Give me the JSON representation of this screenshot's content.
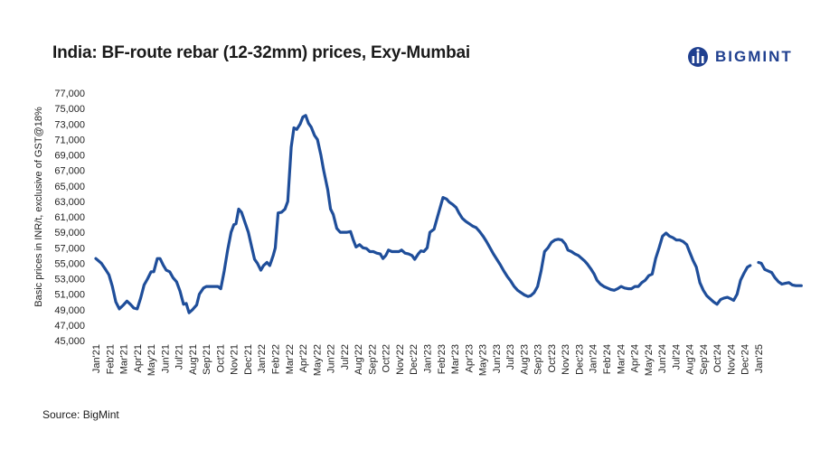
{
  "title": "India: BF-route rebar (12-32mm) prices, Exy-Mumbai",
  "source": "Source: BigMint",
  "brand": {
    "name": "BIGMINT",
    "color": "#1f3f8f",
    "icon": "bigmint-logo-icon"
  },
  "chart_data": {
    "type": "line",
    "title": "India: BF-route rebar (12-32mm) prices, Exy-Mumbai",
    "xlabel": "",
    "ylabel": "Basic prices in INR/t, exclusive of GST@18%",
    "ylim": [
      45000,
      77000
    ],
    "ytick_labels": [
      "45,000",
      "47,000",
      "49,000",
      "51,000",
      "53,000",
      "55,000",
      "57,000",
      "59,000",
      "61,000",
      "63,000",
      "65,000",
      "67,000",
      "69,000",
      "71,000",
      "73,000",
      "75,000",
      "77,000"
    ],
    "categories": [
      "Jan'21",
      "Feb'21",
      "Mar'21",
      "Apr'21",
      "May'21",
      "Jun'21",
      "Jul'21",
      "Aug'21",
      "Sep'21",
      "Oct'21",
      "Nov'21",
      "Dec'21",
      "Jan'22",
      "Feb'22",
      "Mar'22",
      "Apr'22",
      "May'22",
      "Jun'22",
      "Jul'22",
      "Aug'22",
      "Sep'22",
      "Oct'22",
      "Nov'22",
      "Dec'22",
      "Jan'23",
      "Feb'23",
      "Mar'23",
      "Apr'23",
      "May'23",
      "Jun'23",
      "Jul'23",
      "Aug'23",
      "Sep'23",
      "Oct'23",
      "Nov'23",
      "Dec'23",
      "Jan'24",
      "Feb'24",
      "Mar'24",
      "Apr'24",
      "May'24",
      "Jun'24",
      "Jul'24",
      "Aug'24",
      "Sep'24",
      "Oct'24",
      "Nov'24",
      "Dec'24",
      "Jan'25"
    ],
    "grid": false,
    "legend": "none",
    "line_color": "#1f4e9a",
    "series": [
      {
        "segments": [
          [
            [
              0.0,
              55600
            ],
            [
              0.4,
              55000
            ],
            [
              0.7,
              54200
            ],
            [
              0.95,
              53500
            ],
            [
              1.2,
              52000
            ],
            [
              1.45,
              50000
            ],
            [
              1.7,
              49100
            ],
            [
              2.0,
              49600
            ],
            [
              2.25,
              50100
            ],
            [
              2.5,
              49700
            ],
            [
              2.75,
              49200
            ],
            [
              3.0,
              49100
            ],
            [
              3.25,
              50500
            ],
            [
              3.5,
              52200
            ],
            [
              3.75,
              53000
            ],
            [
              4.0,
              53900
            ],
            [
              4.2,
              53900
            ],
            [
              4.45,
              55600
            ],
            [
              4.65,
              55600
            ],
            [
              4.9,
              54700
            ],
            [
              5.1,
              54100
            ],
            [
              5.35,
              53900
            ],
            [
              5.6,
              53100
            ],
            [
              5.85,
              52600
            ],
            [
              6.1,
              51400
            ],
            [
              6.35,
              49700
            ],
            [
              6.55,
              49800
            ],
            [
              6.75,
              48600
            ],
            [
              7.0,
              49000
            ],
            [
              7.3,
              49600
            ],
            [
              7.5,
              51000
            ],
            [
              7.8,
              51800
            ],
            [
              8.0,
              52000
            ],
            [
              8.3,
              52000
            ],
            [
              8.6,
              52000
            ],
            [
              8.85,
              52000
            ],
            [
              9.05,
              51700
            ],
            [
              9.3,
              54000
            ],
            [
              9.55,
              56700
            ],
            [
              9.8,
              59000
            ],
            [
              10.0,
              60000
            ],
            [
              10.15,
              60100
            ],
            [
              10.35,
              62000
            ],
            [
              10.55,
              61600
            ],
            [
              10.8,
              60300
            ],
            [
              11.05,
              59000
            ],
            [
              11.3,
              57000
            ],
            [
              11.5,
              55500
            ],
            [
              11.7,
              55000
            ],
            [
              11.95,
              54100
            ],
            [
              12.15,
              54700
            ],
            [
              12.4,
              55100
            ],
            [
              12.6,
              54700
            ],
            [
              12.85,
              56000
            ],
            [
              13.0,
              57000
            ],
            [
              13.2,
              61500
            ],
            [
              13.45,
              61600
            ],
            [
              13.7,
              62000
            ],
            [
              13.9,
              63000
            ],
            [
              14.15,
              70000
            ],
            [
              14.35,
              72500
            ],
            [
              14.55,
              72300
            ],
            [
              14.8,
              73000
            ],
            [
              15.0,
              73900
            ],
            [
              15.2,
              74100
            ],
            [
              15.4,
              73100
            ],
            [
              15.6,
              72600
            ],
            [
              15.85,
              71500
            ],
            [
              16.05,
              71000
            ],
            [
              16.3,
              69000
            ],
            [
              16.5,
              67000
            ],
            [
              16.8,
              64500
            ],
            [
              17.0,
              62000
            ],
            [
              17.2,
              61300
            ],
            [
              17.45,
              59500
            ],
            [
              17.7,
              59000
            ],
            [
              17.95,
              59000
            ],
            [
              18.2,
              59000
            ],
            [
              18.45,
              59100
            ],
            [
              18.65,
              58000
            ],
            [
              18.85,
              57100
            ],
            [
              19.1,
              57400
            ],
            [
              19.35,
              57000
            ],
            [
              19.6,
              56900
            ],
            [
              19.85,
              56500
            ],
            [
              20.1,
              56500
            ],
            [
              20.35,
              56300
            ],
            [
              20.6,
              56200
            ],
            [
              20.8,
              55600
            ],
            [
              21.0,
              56000
            ],
            [
              21.2,
              56700
            ],
            [
              21.45,
              56500
            ],
            [
              21.7,
              56500
            ],
            [
              21.95,
              56500
            ],
            [
              22.15,
              56700
            ],
            [
              22.4,
              56300
            ],
            [
              22.65,
              56200
            ],
            [
              22.9,
              56000
            ],
            [
              23.1,
              55500
            ],
            [
              23.35,
              56200
            ],
            [
              23.55,
              56600
            ],
            [
              23.75,
              56500
            ],
            [
              24.0,
              57000
            ],
            [
              24.2,
              59000
            ],
            [
              24.5,
              59400
            ],
            [
              24.75,
              61000
            ],
            [
              25.0,
              62600
            ],
            [
              25.15,
              63500
            ],
            [
              25.4,
              63300
            ],
            [
              25.6,
              62900
            ],
            [
              25.85,
              62600
            ],
            [
              26.1,
              62200
            ],
            [
              26.3,
              61500
            ],
            [
              26.55,
              60800
            ],
            [
              26.8,
              60400
            ],
            [
              27.05,
              60100
            ],
            [
              27.3,
              59800
            ],
            [
              27.55,
              59600
            ],
            [
              27.8,
              59100
            ],
            [
              28.05,
              58500
            ],
            [
              28.3,
              57800
            ],
            [
              28.55,
              57000
            ],
            [
              28.8,
              56200
            ],
            [
              29.05,
              55500
            ],
            [
              29.3,
              54800
            ],
            [
              29.55,
              54000
            ],
            [
              29.8,
              53300
            ],
            [
              30.05,
              52700
            ],
            [
              30.3,
              52000
            ],
            [
              30.55,
              51500
            ],
            [
              30.8,
              51200
            ],
            [
              31.05,
              50900
            ],
            [
              31.3,
              50700
            ],
            [
              31.5,
              50800
            ],
            [
              31.75,
              51200
            ],
            [
              32.0,
              52000
            ],
            [
              32.25,
              54000
            ],
            [
              32.5,
              56500
            ],
            [
              32.75,
              57000
            ],
            [
              33.0,
              57700
            ],
            [
              33.25,
              58000
            ],
            [
              33.5,
              58100
            ],
            [
              33.75,
              58000
            ],
            [
              34.0,
              57500
            ],
            [
              34.2,
              56700
            ],
            [
              34.45,
              56500
            ],
            [
              34.7,
              56200
            ],
            [
              34.95,
              56000
            ],
            [
              35.15,
              55700
            ],
            [
              35.4,
              55300
            ],
            [
              35.6,
              54900
            ],
            [
              35.85,
              54300
            ],
            [
              36.1,
              53600
            ],
            [
              36.3,
              52800
            ],
            [
              36.55,
              52300
            ],
            [
              36.8,
              52000
            ],
            [
              37.05,
              51800
            ],
            [
              37.3,
              51600
            ],
            [
              37.55,
              51500
            ],
            [
              37.8,
              51700
            ],
            [
              38.05,
              52000
            ],
            [
              38.3,
              51800
            ],
            [
              38.55,
              51700
            ],
            [
              38.8,
              51700
            ],
            [
              39.05,
              52000
            ],
            [
              39.3,
              52000
            ],
            [
              39.55,
              52500
            ],
            [
              39.8,
              52800
            ],
            [
              40.05,
              53400
            ],
            [
              40.3,
              53600
            ],
            [
              40.55,
              55600
            ],
            [
              40.8,
              57000
            ],
            [
              41.05,
              58500
            ],
            [
              41.3,
              58900
            ],
            [
              41.55,
              58500
            ],
            [
              41.8,
              58300
            ],
            [
              42.05,
              58000
            ],
            [
              42.3,
              58000
            ],
            [
              42.55,
              57800
            ],
            [
              42.8,
              57400
            ],
            [
              43.0,
              56500
            ],
            [
              43.25,
              55400
            ],
            [
              43.5,
              54500
            ],
            [
              43.75,
              52500
            ],
            [
              44.0,
              51500
            ],
            [
              44.25,
              50800
            ],
            [
              44.5,
              50400
            ],
            [
              44.75,
              50000
            ],
            [
              45.0,
              49700
            ],
            [
              45.25,
              50300
            ],
            [
              45.5,
              50500
            ],
            [
              45.75,
              50600
            ],
            [
              46.0,
              50400
            ],
            [
              46.2,
              50200
            ],
            [
              46.45,
              51000
            ],
            [
              46.7,
              52800
            ],
            [
              46.95,
              53700
            ],
            [
              47.2,
              54500
            ],
            [
              47.4,
              54700
            ]
          ],
          [
            [
              48.0,
              55100
            ],
            [
              48.2,
              55000
            ],
            [
              48.45,
              54200
            ],
            [
              48.7,
              54000
            ],
            [
              48.95,
              53800
            ],
            [
              49.2,
              53100
            ],
            [
              49.45,
              52600
            ],
            [
              49.7,
              52300
            ],
            [
              49.95,
              52400
            ],
            [
              50.2,
              52500
            ],
            [
              50.45,
              52200
            ],
            [
              50.7,
              52100
            ],
            [
              50.9,
              52100
            ],
            [
              51.1,
              52100
            ]
          ]
        ]
      }
    ]
  }
}
